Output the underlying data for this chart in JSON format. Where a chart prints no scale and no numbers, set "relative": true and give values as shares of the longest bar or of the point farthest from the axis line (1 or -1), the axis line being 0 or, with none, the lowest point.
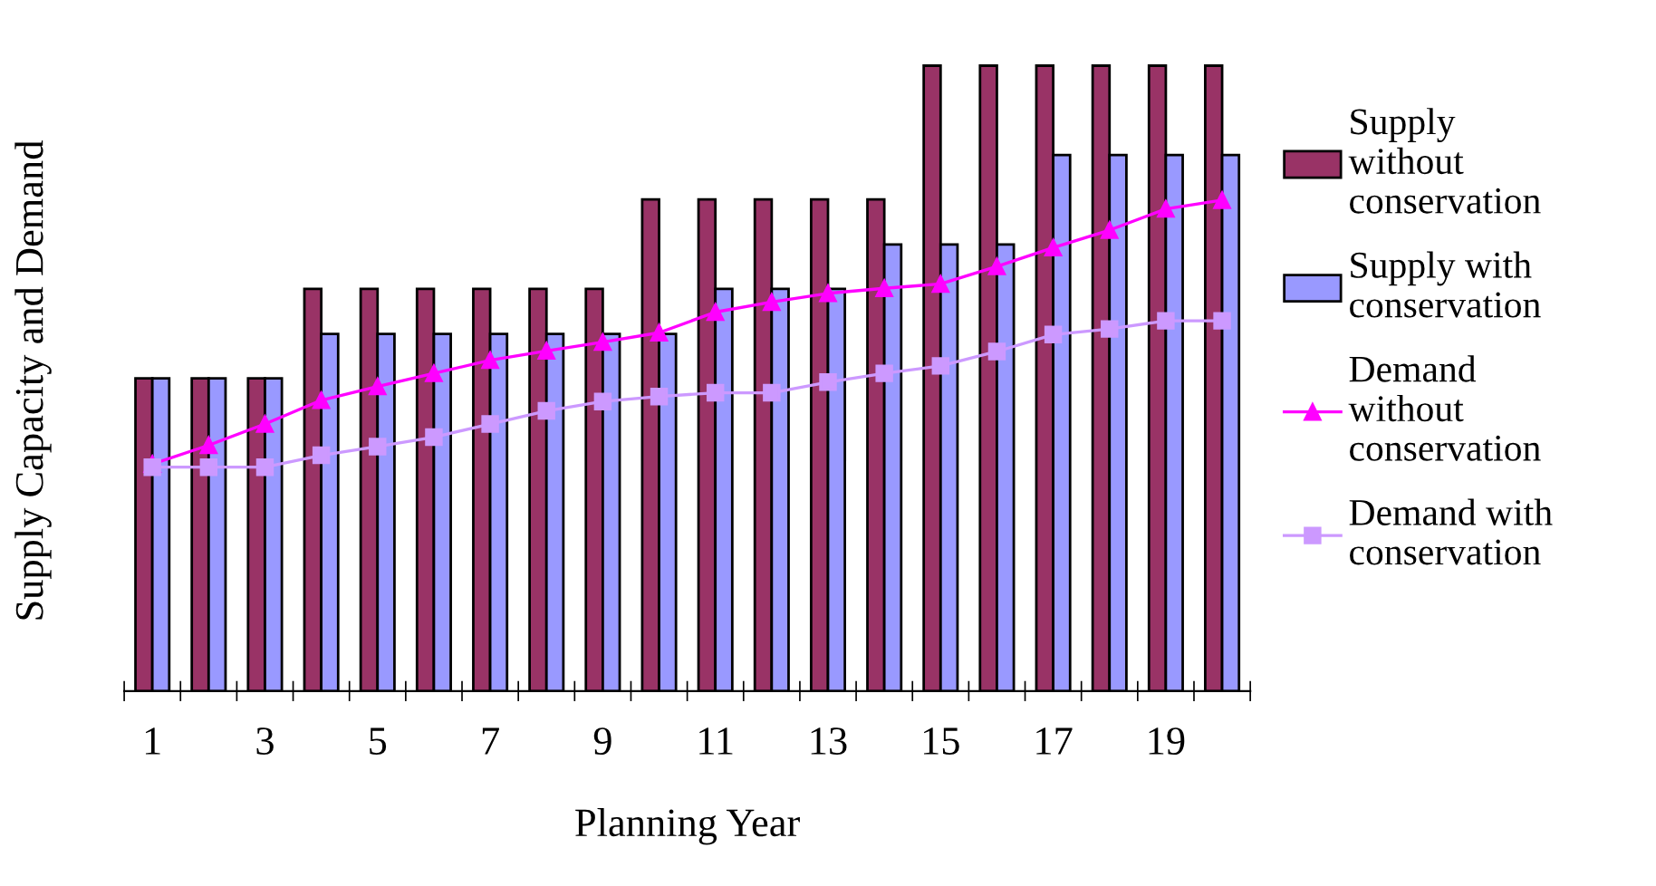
{
  "chart_data": {
    "type": "bar",
    "relative": true,
    "xlabel": "Planning Year",
    "ylabel": "Supply Capacity and Demand",
    "legend": "right",
    "categories": [
      "1",
      null,
      "3",
      null,
      "5",
      null,
      "7",
      null,
      "9",
      null,
      "11",
      null,
      "13",
      null,
      "15",
      null,
      "17",
      null,
      "19",
      null
    ],
    "series": [
      {
        "name": "Supply without conservation",
        "color": "#993366",
        "values": [
          0.5,
          0.5,
          0.5,
          0.643,
          0.643,
          0.643,
          0.643,
          0.643,
          0.643,
          0.786,
          0.786,
          0.786,
          0.786,
          0.786,
          1,
          1,
          1,
          1,
          1,
          1
        ]
      },
      {
        "name": "Supply with conservation",
        "color": "#9999ff",
        "values": [
          0.5,
          0.5,
          0.5,
          0.571,
          0.571,
          0.571,
          0.571,
          0.571,
          0.571,
          0.571,
          0.643,
          0.643,
          0.643,
          0.714,
          0.714,
          0.714,
          0.857,
          0.857,
          0.857,
          0.857
        ]
      },
      {
        "name": "Demand without conservation",
        "type": "line",
        "marker": "triangle",
        "color": "#ff00ff",
        "values": [
          0.363,
          0.393,
          0.427,
          0.465,
          0.487,
          0.508,
          0.529,
          0.544,
          0.558,
          0.573,
          0.606,
          0.622,
          0.636,
          0.644,
          0.651,
          0.679,
          0.709,
          0.737,
          0.771,
          0.785
        ]
      },
      {
        "name": "Demand with conservation",
        "type": "line",
        "marker": "square",
        "color": "#cc99ff",
        "values": [
          0.358,
          0.358,
          0.358,
          0.377,
          0.391,
          0.406,
          0.427,
          0.448,
          0.463,
          0.471,
          0.477,
          0.477,
          0.494,
          0.508,
          0.52,
          0.543,
          0.57,
          0.579,
          0.592,
          0.592
        ]
      }
    ]
  }
}
